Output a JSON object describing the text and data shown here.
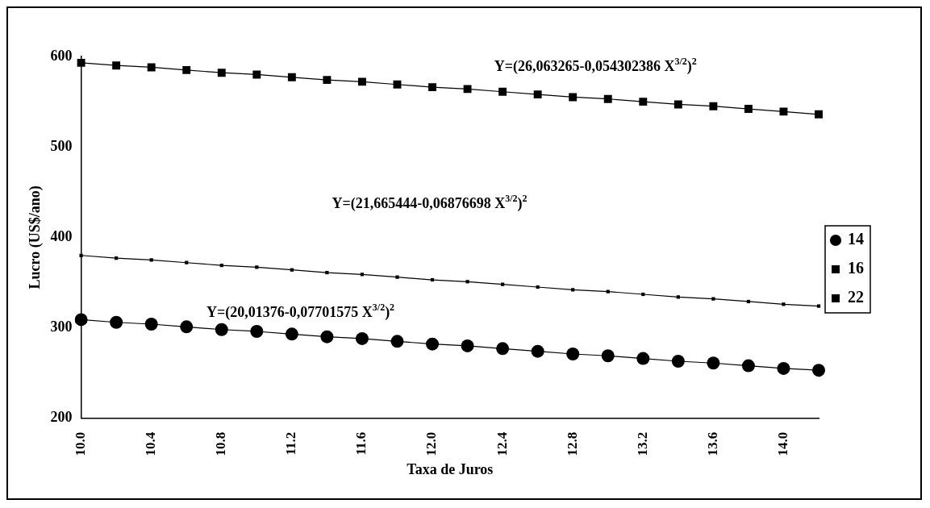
{
  "chart_data": {
    "type": "line",
    "xlabel": "Taxa de Juros",
    "ylabel": "Lucro (US$/ano)",
    "categories": [
      "10.0",
      null,
      "10.4",
      null,
      "10.8",
      null,
      "11.2",
      null,
      "11.6",
      null,
      "12.0",
      null,
      "12.4",
      null,
      "12.8",
      null,
      "13.2",
      null,
      "13.6",
      null,
      "14.0",
      null
    ],
    "series": [
      {
        "name": "14",
        "color": "#000000",
        "marker": "circle",
        "values": [
          309,
          306,
          304,
          301,
          298,
          296,
          293,
          290,
          288,
          285,
          282,
          280,
          277,
          274,
          271,
          269,
          266,
          263,
          261,
          258,
          255,
          253
        ]
      },
      {
        "name": "16",
        "color": "#000000",
        "marker": "square",
        "values": [
          380,
          377,
          375,
          372,
          369,
          367,
          364,
          361,
          359,
          356,
          353,
          351,
          348,
          345,
          342,
          340,
          337,
          334,
          332,
          329,
          326,
          324
        ]
      },
      {
        "name": "22",
        "color": "#000000",
        "marker": "square",
        "values": [
          593,
          590,
          588,
          585,
          582,
          580,
          577,
          574,
          572,
          569,
          566,
          564,
          561,
          558,
          555,
          553,
          550,
          547,
          545,
          542,
          539,
          536
        ]
      }
    ],
    "ylim": [
      200,
      600
    ],
    "yticks": [
      200,
      300,
      400,
      500,
      600
    ],
    "grid": false,
    "legend": "right",
    "line_style": "solid",
    "annotations": [
      "Y=(26,063265-0,054302386 X$^{3/2}$)$^{2}$",
      "Y=(21,665444-0,06876698 X$^{3/2}$)$^{2}$",
      "Y=(20,01376-0,07701575 X$^{3/2}$)$^{2}$"
    ]
  }
}
